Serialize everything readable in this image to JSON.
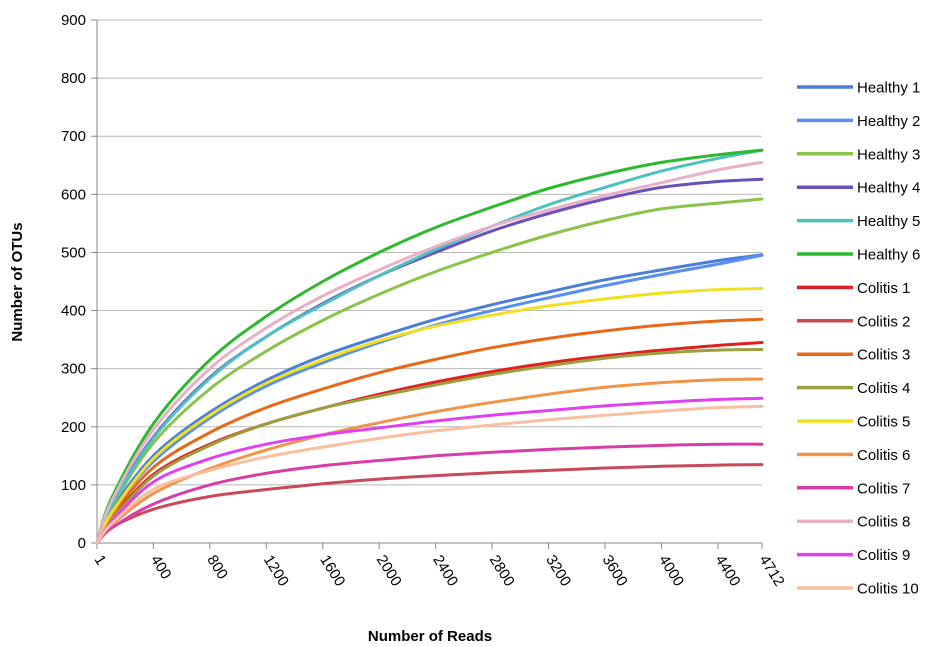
{
  "chart_data": {
    "type": "line",
    "title": "",
    "xlabel": "Number of Reads",
    "ylabel": "Number of OTUs",
    "xlim": [
      1,
      4712
    ],
    "ylim": [
      0,
      900
    ],
    "x_tick_labels": [
      "1",
      "400",
      "800",
      "1200",
      "1600",
      "2000",
      "2400",
      "2800",
      "3200",
      "3600",
      "4000",
      "4400",
      "4712"
    ],
    "y_tick_labels": [
      "0",
      "100",
      "200",
      "300",
      "400",
      "500",
      "600",
      "700",
      "800",
      "900"
    ],
    "grid": "horizontal",
    "legend_position": "right",
    "x": [
      1,
      100,
      400,
      800,
      1200,
      1600,
      2000,
      2400,
      2800,
      3200,
      3600,
      4000,
      4400,
      4712
    ],
    "series": [
      {
        "name": "Healthy 1",
        "color": "#4a7ed8",
        "values": [
          0,
          55,
          150,
          225,
          280,
          322,
          355,
          385,
          410,
          432,
          453,
          470,
          486,
          496
        ]
      },
      {
        "name": "Healthy 2",
        "color": "#5a8ef0",
        "values": [
          0,
          52,
          140,
          215,
          270,
          310,
          345,
          375,
          400,
          422,
          443,
          462,
          480,
          495
        ]
      },
      {
        "name": "Healthy 3",
        "color": "#8bc34a",
        "values": [
          0,
          60,
          172,
          265,
          330,
          383,
          428,
          467,
          500,
          530,
          555,
          575,
          585,
          592
        ]
      },
      {
        "name": "Healthy 4",
        "color": "#6a52b8",
        "values": [
          0,
          64,
          182,
          285,
          355,
          412,
          460,
          500,
          537,
          567,
          592,
          612,
          622,
          626
        ]
      },
      {
        "name": "Healthy 5",
        "color": "#4fc0c0",
        "values": [
          0,
          62,
          180,
          283,
          355,
          410,
          460,
          505,
          545,
          582,
          612,
          640,
          662,
          676
        ]
      },
      {
        "name": "Healthy 6",
        "color": "#2eb82e",
        "values": [
          0,
          75,
          205,
          315,
          390,
          450,
          500,
          543,
          578,
          610,
          635,
          655,
          668,
          676
        ]
      },
      {
        "name": "Colitis 1",
        "color": "#e02020",
        "values": [
          0,
          40,
          118,
          170,
          205,
          232,
          256,
          277,
          295,
          310,
          322,
          332,
          340,
          345
        ]
      },
      {
        "name": "Colitis 2",
        "color": "#c84a5a",
        "values": [
          0,
          26,
          58,
          80,
          92,
          102,
          110,
          116,
          121,
          125,
          129,
          132,
          134,
          135
        ]
      },
      {
        "name": "Colitis 3",
        "color": "#e8681a",
        "values": [
          0,
          45,
          130,
          190,
          233,
          265,
          293,
          316,
          336,
          352,
          365,
          375,
          382,
          385
        ]
      },
      {
        "name": "Colitis 4",
        "color": "#9aa040",
        "values": [
          0,
          38,
          115,
          168,
          205,
          232,
          253,
          272,
          290,
          305,
          318,
          327,
          332,
          333
        ]
      },
      {
        "name": "Colitis 5",
        "color": "#f0e020",
        "values": [
          0,
          50,
          145,
          220,
          275,
          315,
          348,
          373,
          392,
          408,
          420,
          430,
          436,
          438
        ]
      },
      {
        "name": "Colitis 6",
        "color": "#f0944a",
        "values": [
          0,
          30,
          85,
          128,
          160,
          186,
          207,
          226,
          242,
          256,
          268,
          276,
          281,
          282
        ]
      },
      {
        "name": "Colitis 7",
        "color": "#d83ca8",
        "values": [
          0,
          25,
          67,
          100,
          120,
          133,
          142,
          150,
          156,
          161,
          165,
          168,
          170,
          170
        ]
      },
      {
        "name": "Colitis 8",
        "color": "#e8b0c8",
        "values": [
          0,
          70,
          195,
          300,
          370,
          425,
          470,
          510,
          545,
          573,
          598,
          620,
          642,
          655
        ]
      },
      {
        "name": "Colitis 9",
        "color": "#e040f0",
        "values": [
          0,
          35,
          105,
          145,
          170,
          186,
          198,
          210,
          220,
          228,
          236,
          242,
          247,
          249
        ]
      },
      {
        "name": "Colitis 10",
        "color": "#f8c0a0",
        "values": [
          0,
          32,
          92,
          125,
          148,
          165,
          180,
          193,
          203,
          212,
          220,
          227,
          233,
          235
        ]
      }
    ]
  }
}
